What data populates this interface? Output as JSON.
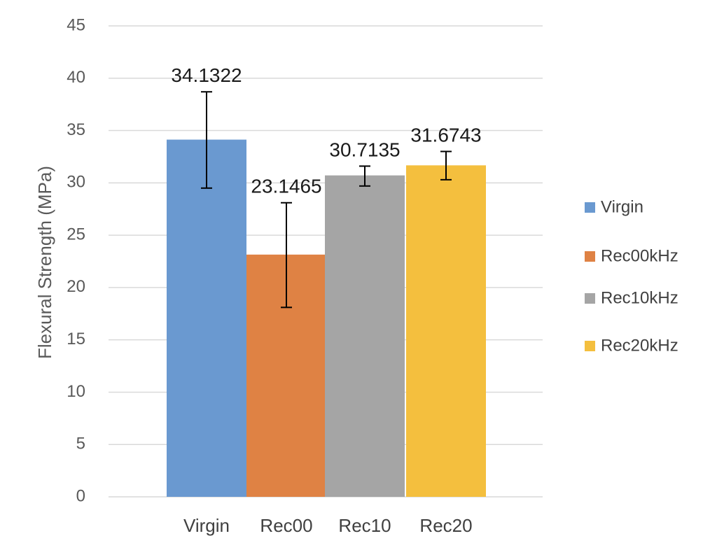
{
  "chart_data": {
    "type": "bar",
    "categories": [
      "Virgin",
      "Rec00",
      "Rec10",
      "Rec20"
    ],
    "values": [
      34.1322,
      23.1465,
      30.7135,
      31.6743
    ],
    "data_labels": [
      "34.1322",
      "23.1465",
      "30.7135",
      "31.6743"
    ],
    "error_bars": [
      {
        "low": 29.5,
        "high": 38.7
      },
      {
        "low": 18.1,
        "high": 28.1
      },
      {
        "low": 29.7,
        "high": 31.6
      },
      {
        "low": 30.3,
        "high": 33.0
      }
    ],
    "series": [
      {
        "name": "Virgin",
        "color": "#6a99d0"
      },
      {
        "name": "Rec00kHz",
        "color": "#df8244"
      },
      {
        "name": "Rec10kHz",
        "color": "#a5a5a5"
      },
      {
        "name": "Rec20kHz",
        "color": "#f4bf3e"
      }
    ],
    "ylabel": "Flexural  Strength (MPa)",
    "xlabel": "",
    "ylim": [
      0,
      45
    ],
    "yticks": [
      0,
      5,
      10,
      15,
      20,
      25,
      30,
      35,
      40,
      45
    ],
    "grid": true,
    "legend_position": "right"
  }
}
